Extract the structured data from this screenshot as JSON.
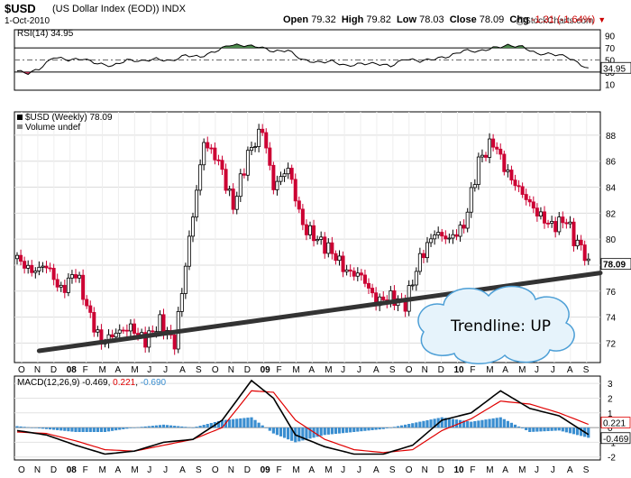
{
  "header": {
    "symbol": "$USD",
    "name": "(US Dollar Index (EOD))",
    "exchange": "INDX",
    "date": "1-Oct-2010",
    "watermark": "@StockCharts.com",
    "open_label": "Open",
    "open": "79.32",
    "high_label": "High",
    "high": "79.82",
    "low_label": "Low",
    "low": "78.03",
    "close_label": "Close",
    "close": "78.09",
    "chg_label": "Chg",
    "chg": "-1.31 (-1.64%)"
  },
  "colors": {
    "up": "#000000",
    "down": "#cc0033",
    "trendline": "#333333",
    "cloud_fill": "#e6f3fb",
    "cloud_stroke": "#4d9fd6",
    "macd_hist": "#3a8ed0",
    "signal": "#e00000",
    "rsi_fill": "#4c8a4c"
  },
  "chart_data": [
    {
      "type": "line",
      "title": "RSI(14) 34.95",
      "ylim": [
        0,
        100
      ],
      "reference_lines": [
        30,
        50,
        70
      ],
      "yticks": [
        "90",
        "70",
        "50",
        "30",
        "10"
      ],
      "last_value_label": "34.95",
      "x": [
        0,
        3,
        6,
        10,
        14,
        18,
        22,
        26,
        30,
        34,
        38,
        42,
        46,
        50,
        54,
        58,
        62,
        66,
        70,
        74,
        78,
        82,
        86,
        90,
        94,
        98,
        102,
        106,
        110,
        114,
        118,
        122,
        126,
        130,
        134,
        138,
        142,
        146,
        150,
        156
      ],
      "values": [
        32,
        28,
        35,
        55,
        50,
        52,
        44,
        40,
        50,
        48,
        52,
        48,
        58,
        55,
        64,
        75,
        74,
        72,
        64,
        66,
        50,
        46,
        48,
        40,
        44,
        44,
        40,
        52,
        48,
        52,
        56,
        66,
        64,
        70,
        74,
        72,
        60,
        60,
        56,
        35
      ]
    },
    {
      "type": "candlestick",
      "title": "$USD (Weekly) 78.09",
      "volume_label": "Volume undef",
      "ylim": [
        70.5,
        89.8
      ],
      "yticks": [
        "88",
        "86",
        "84",
        "82",
        "80",
        "78",
        "76",
        "74",
        "72"
      ],
      "last_value_label": "78.09",
      "x_ticks": [
        "O",
        "N",
        "D",
        "08",
        "F",
        "M",
        "A",
        "M",
        "J",
        "J",
        "A",
        "S",
        "O",
        "N",
        "D",
        "09",
        "F",
        "M",
        "A",
        "M",
        "J",
        "J",
        "A",
        "S",
        "O",
        "N",
        "D",
        "10",
        "F",
        "M",
        "A",
        "M",
        "J",
        "J",
        "A",
        "S"
      ],
      "x_ticks_bold": [
        "08",
        "09",
        "10"
      ],
      "anchors": {
        "x": [
          0,
          4,
          8,
          12,
          16,
          20,
          23,
          27,
          31,
          35,
          39,
          43,
          47,
          51,
          55,
          59,
          63,
          67,
          70,
          74,
          78,
          82,
          86,
          90,
          94,
          98,
          102,
          106,
          110,
          114,
          118,
          122,
          126,
          130,
          134,
          138,
          142,
          146,
          150,
          152,
          154,
          156
        ],
        "close": [
          78.5,
          77.5,
          78.0,
          76.0,
          77.5,
          74.0,
          72.0,
          72.8,
          73.2,
          72.2,
          73.6,
          72.0,
          80.0,
          87.5,
          86.0,
          82.5,
          86.5,
          88.5,
          84.0,
          85.5,
          81.0,
          80.0,
          79.0,
          77.5,
          77.2,
          75.2,
          75.5,
          75.0,
          78.5,
          80.5,
          80.0,
          81.0,
          86.0,
          87.5,
          85.0,
          83.5,
          82.0,
          81.0,
          81.5,
          80.0,
          79.4,
          78.09
        ]
      },
      "trendline": {
        "start": {
          "x": 6,
          "y": 71.4
        },
        "end": {
          "x": 160,
          "y": 77.4
        },
        "label": "Trendline: UP"
      }
    },
    {
      "type": "line",
      "title": "MACD(12,26,9)",
      "macd_value": "-0.469",
      "signal_value": "0.221",
      "hist_value": "-0.690",
      "ylim": [
        -2.2,
        3.5
      ],
      "yticks": [
        "3",
        "2",
        "1",
        "0",
        "-1",
        "-2"
      ],
      "right_tags": [
        "0.221",
        "-0.469"
      ],
      "x": [
        0,
        8,
        16,
        24,
        32,
        40,
        48,
        56,
        64,
        70,
        76,
        84,
        92,
        100,
        108,
        116,
        124,
        132,
        140,
        148,
        156
      ],
      "series": [
        {
          "name": "MACD",
          "values": [
            -0.2,
            -0.5,
            -1.2,
            -1.8,
            -1.6,
            -1.0,
            -0.8,
            0.5,
            3.2,
            2.0,
            -0.5,
            -1.3,
            -1.8,
            -1.8,
            -1.2,
            0.5,
            1.0,
            2.5,
            1.3,
            0.8,
            -0.469
          ]
        },
        {
          "name": "Signal",
          "values": [
            -0.3,
            -0.4,
            -0.9,
            -1.5,
            -1.6,
            -1.2,
            -0.8,
            0.0,
            2.5,
            2.4,
            0.5,
            -0.8,
            -1.5,
            -1.7,
            -1.5,
            -0.2,
            0.6,
            1.8,
            1.6,
            1.0,
            0.221
          ]
        }
      ],
      "x_ticks": [
        "O",
        "N",
        "D",
        "08",
        "F",
        "M",
        "A",
        "M",
        "J",
        "J",
        "A",
        "S",
        "O",
        "N",
        "D",
        "09",
        "F",
        "M",
        "A",
        "M",
        "J",
        "J",
        "A",
        "S",
        "O",
        "N",
        "D",
        "10",
        "F",
        "M",
        "A",
        "M",
        "J",
        "J",
        "A",
        "S"
      ]
    }
  ]
}
